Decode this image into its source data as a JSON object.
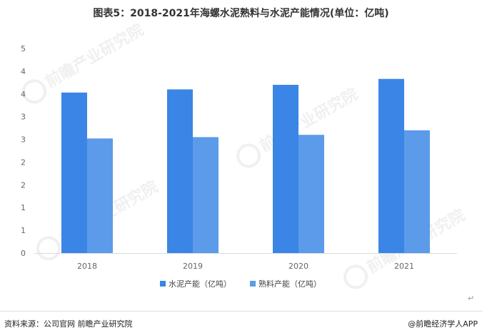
{
  "title": "图表5：2018-2021年海螺水泥熟料与水泥产能情况(单位：亿吨)",
  "footer": {
    "source": "资料来源：公司官网 前瞻产业研究院",
    "brand": "@前瞻经济学人APP"
  },
  "watermark": "前瞻产业研究院",
  "return_mark": "↵",
  "chart_data": {
    "type": "bar",
    "categories": [
      "2018",
      "2019",
      "2020",
      "2021"
    ],
    "y_tick_labels": [
      "0",
      "1",
      "1",
      "2",
      "2",
      "3",
      "3",
      "4",
      "4",
      "5"
    ],
    "ylim": [
      0,
      4.5
    ],
    "grid": false,
    "legend_position": "bottom",
    "series": [
      {
        "name": "水泥产能（亿吨）",
        "color": "#3A85E6",
        "values": [
          3.53,
          3.6,
          3.7,
          3.83
        ]
      },
      {
        "name": "熟料产能（亿吨）",
        "color": "#5B9BE9",
        "values": [
          2.52,
          2.55,
          2.6,
          2.7
        ]
      }
    ]
  }
}
